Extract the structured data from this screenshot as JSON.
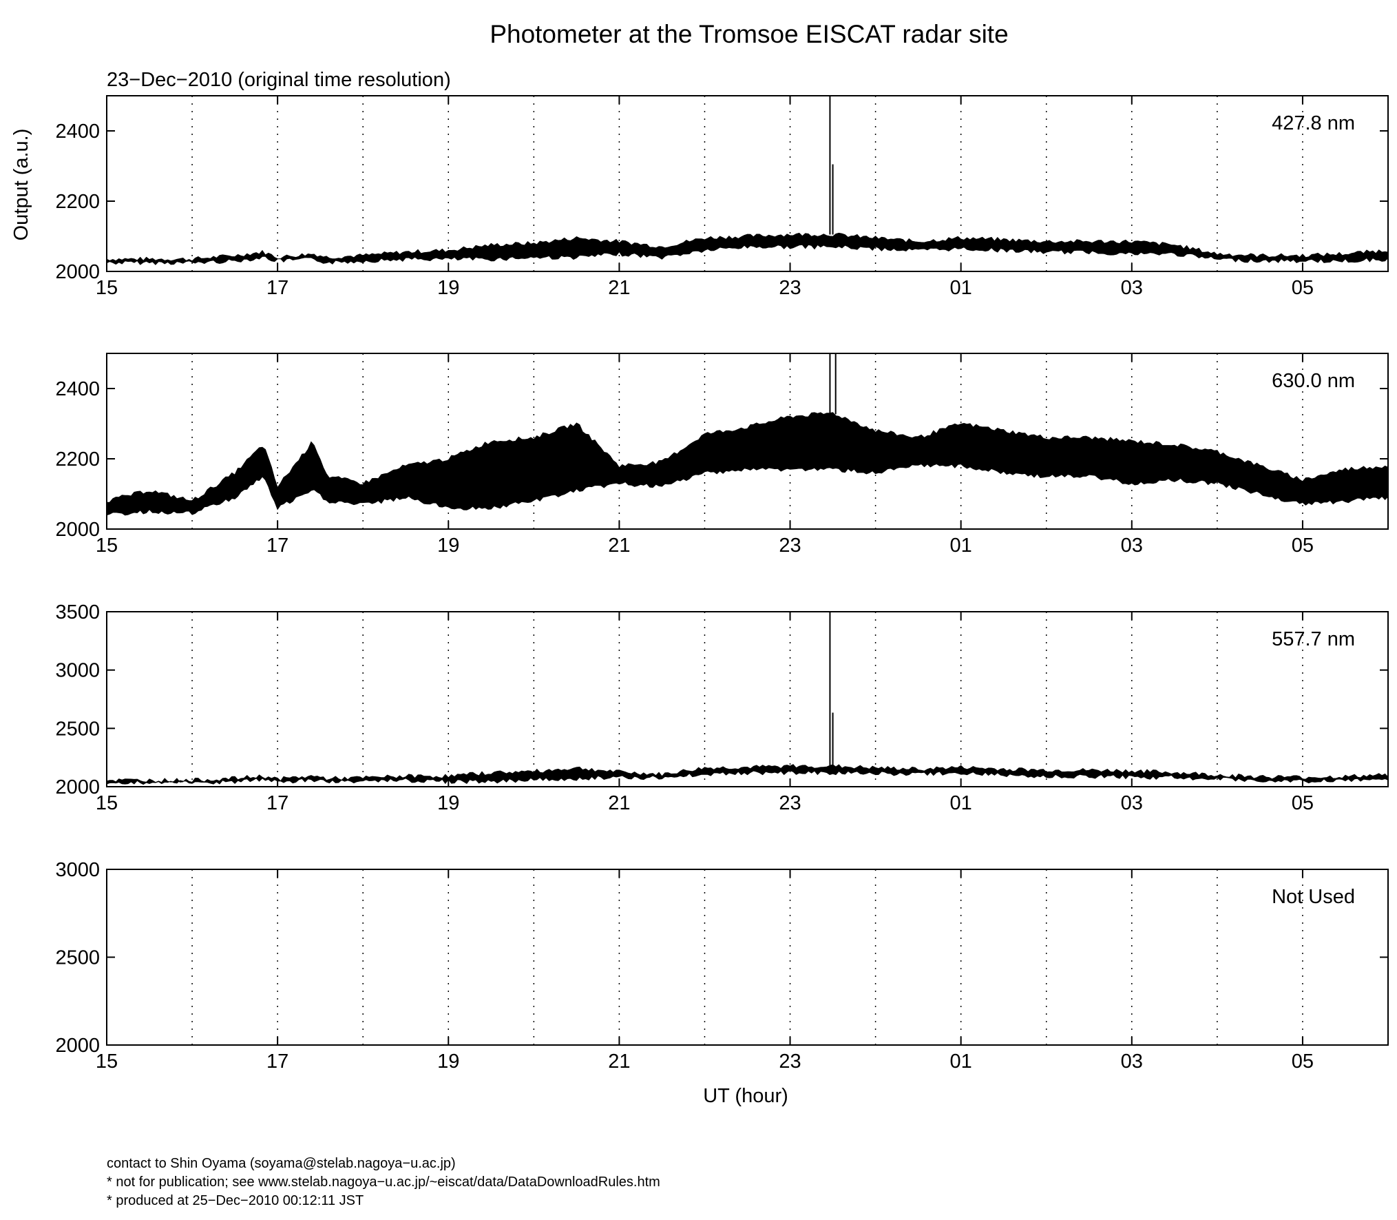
{
  "chart_data": {
    "type": "line",
    "title": "Photometer at the Tromsoe EISCAT radar site",
    "subtitle": "23−Dec−2010 (original time resolution)",
    "ylabel": "Output (a.u.)",
    "xlabel": "UT (hour)",
    "x_unit": "UT hour (15:00 on 23-Dec-2010 to 06:00 on 24-Dec-2010)",
    "xlim": [
      "15",
      "06"
    ],
    "x_ticks": [
      "15",
      "17",
      "19",
      "21",
      "23",
      "01",
      "03",
      "05"
    ],
    "x_gridlines_hours": [
      "16",
      "17",
      "18",
      "19",
      "20",
      "21",
      "22",
      "23",
      "00",
      "01",
      "02",
      "03",
      "04",
      "05"
    ],
    "grid": "vertical dotted",
    "panels": [
      {
        "label": "427.8 nm",
        "ylim": [
          2000,
          2500
        ],
        "y_ticks": [
          "2000",
          "2200",
          "2400"
        ],
        "envelope_x": [
          "15:00",
          "15:30",
          "16:00",
          "16:30",
          "16:50",
          "17:00",
          "17:25",
          "17:35",
          "18:00",
          "18:30",
          "19:00",
          "19:30",
          "20:00",
          "20:30",
          "21:00",
          "21:30",
          "22:00",
          "22:30",
          "23:00",
          "23:30",
          "00:00",
          "00:30",
          "01:00",
          "01:30",
          "02:00",
          "02:30",
          "03:00",
          "03:30",
          "04:00",
          "04:30",
          "05:00",
          "05:30",
          "06:00"
        ],
        "envelope_lower": [
          2025,
          2025,
          2025,
          2030,
          2040,
          2030,
          2035,
          2025,
          2030,
          2035,
          2035,
          2035,
          2040,
          2040,
          2050,
          2040,
          2060,
          2070,
          2070,
          2070,
          2065,
          2060,
          2065,
          2060,
          2055,
          2055,
          2050,
          2050,
          2035,
          2030,
          2030,
          2030,
          2035
        ],
        "envelope_upper": [
          2035,
          2035,
          2035,
          2045,
          2055,
          2040,
          2050,
          2040,
          2045,
          2055,
          2060,
          2075,
          2080,
          2095,
          2085,
          2070,
          2095,
          2100,
          2105,
          2105,
          2095,
          2085,
          2095,
          2090,
          2085,
          2085,
          2085,
          2075,
          2050,
          2045,
          2045,
          2050,
          2060
        ],
        "spikes": [
          {
            "x": "23:28",
            "y": 2500
          },
          {
            "x": "23:30",
            "y": 2305
          }
        ]
      },
      {
        "label": "630.0 nm",
        "ylim": [
          2000,
          2500
        ],
        "y_ticks": [
          "2000",
          "2200",
          "2400"
        ],
        "envelope_x": [
          "15:00",
          "15:30",
          "16:00",
          "16:30",
          "16:50",
          "17:00",
          "17:25",
          "17:35",
          "18:00",
          "18:30",
          "19:00",
          "19:30",
          "20:00",
          "20:30",
          "21:00",
          "21:30",
          "22:00",
          "22:30",
          "23:00",
          "23:30",
          "00:00",
          "00:30",
          "01:00",
          "01:30",
          "02:00",
          "02:30",
          "03:00",
          "03:30",
          "04:00",
          "04:30",
          "05:00",
          "05:30",
          "06:00"
        ],
        "envelope_lower": [
          2040,
          2050,
          2045,
          2090,
          2150,
          2060,
          2110,
          2080,
          2070,
          2090,
          2060,
          2060,
          2080,
          2110,
          2130,
          2120,
          2160,
          2170,
          2170,
          2170,
          2160,
          2180,
          2180,
          2160,
          2150,
          2150,
          2130,
          2140,
          2130,
          2100,
          2070,
          2080,
          2090
        ],
        "envelope_upper": [
          2080,
          2110,
          2080,
          2160,
          2240,
          2120,
          2250,
          2150,
          2130,
          2180,
          2200,
          2250,
          2260,
          2300,
          2180,
          2190,
          2270,
          2290,
          2320,
          2330,
          2280,
          2260,
          2300,
          2280,
          2260,
          2260,
          2250,
          2240,
          2220,
          2180,
          2140,
          2170,
          2180
        ],
        "spikes": [
          {
            "x": "23:28",
            "y": 2500
          },
          {
            "x": "23:32",
            "y": 2500
          }
        ]
      },
      {
        "label": "557.7 nm",
        "ylim": [
          2000,
          3500
        ],
        "y_ticks": [
          "2000",
          "2500",
          "3000",
          "3500"
        ],
        "envelope_x": [
          "15:00",
          "15:30",
          "16:00",
          "16:30",
          "16:50",
          "17:00",
          "17:25",
          "17:35",
          "18:00",
          "18:30",
          "19:00",
          "19:30",
          "20:00",
          "20:30",
          "21:00",
          "21:30",
          "22:00",
          "22:30",
          "23:00",
          "23:30",
          "00:00",
          "00:30",
          "01:00",
          "01:30",
          "02:00",
          "02:30",
          "03:00",
          "03:30",
          "04:00",
          "04:30",
          "05:00",
          "05:30",
          "06:00"
        ],
        "envelope_lower": [
          2035,
          2035,
          2035,
          2040,
          2060,
          2040,
          2055,
          2045,
          2050,
          2055,
          2045,
          2045,
          2060,
          2070,
          2085,
          2075,
          2110,
          2120,
          2120,
          2120,
          2115,
          2110,
          2120,
          2100,
          2090,
          2090,
          2080,
          2080,
          2065,
          2055,
          2050,
          2050,
          2060
        ],
        "envelope_upper": [
          2055,
          2055,
          2055,
          2070,
          2090,
          2065,
          2090,
          2070,
          2075,
          2090,
          2090,
          2120,
          2130,
          2160,
          2125,
          2105,
          2160,
          2165,
          2175,
          2175,
          2160,
          2150,
          2165,
          2150,
          2140,
          2140,
          2135,
          2120,
          2100,
          2085,
          2080,
          2085,
          2100
        ],
        "spikes": [
          {
            "x": "23:28",
            "y": 3500
          },
          {
            "x": "23:30",
            "y": 2635
          }
        ]
      },
      {
        "label": "Not Used",
        "ylim": [
          2000,
          3000
        ],
        "y_ticks": [
          "2000",
          "2500",
          "3000"
        ],
        "envelope_x": [],
        "envelope_lower": [],
        "envelope_upper": [],
        "spikes": []
      }
    ]
  },
  "footer": {
    "contact": "contact to Shin Oyama (soyama@stelab.nagoya−u.ac.jp)",
    "notice": "* not for publication; see www.stelab.nagoya−u.ac.jp/~eiscat/data/DataDownloadRules.htm",
    "produced": "* produced at 25−Dec−2010 00:12:11 JST"
  }
}
